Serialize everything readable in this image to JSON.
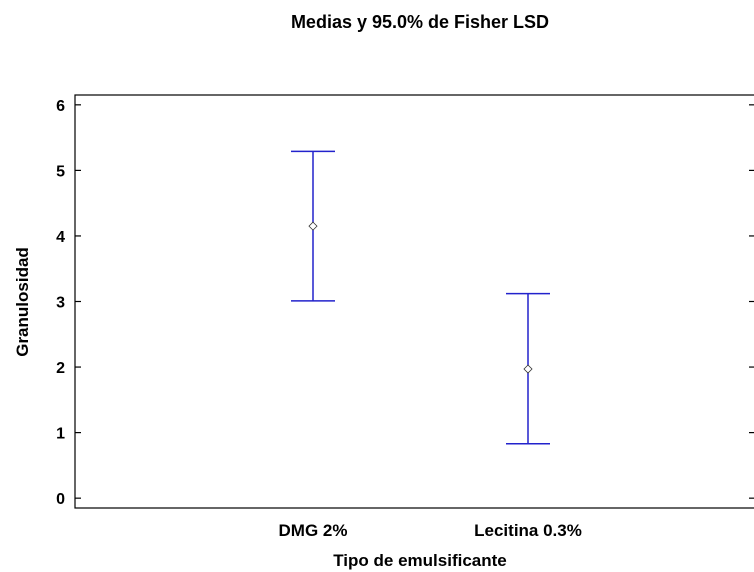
{
  "chart_data": {
    "type": "interval",
    "title": "Medias y 95.0% de Fisher LSD",
    "xlabel": "Tipo de emulsificante",
    "ylabel": "Granulosidad",
    "ylim": [
      -0.15,
      6.15
    ],
    "yticks": [
      0,
      1,
      2,
      3,
      4,
      5,
      6
    ],
    "categories": [
      "DMG 2%",
      "Lecitina 0.3%"
    ],
    "means": [
      4.15,
      1.97
    ],
    "lower": [
      3.01,
      0.83
    ],
    "upper": [
      5.29,
      3.12
    ],
    "interval_color": "#2222cc",
    "grid": false
  }
}
